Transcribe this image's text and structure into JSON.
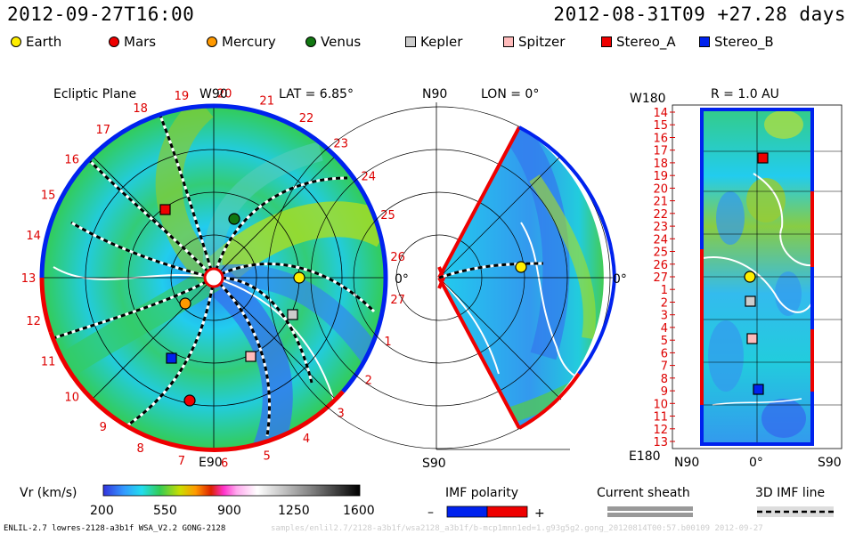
{
  "header": {
    "timestamp_left": "2012-09-27T16:00",
    "timestamp_right": "2012-08-31T09 +27.28 days"
  },
  "legend": [
    {
      "label": "Earth",
      "color": "#ffee00",
      "shape": "circle"
    },
    {
      "label": "Mars",
      "color": "#ee0000",
      "shape": "circle"
    },
    {
      "label": "Mercury",
      "color": "#ff9900",
      "shape": "circle"
    },
    {
      "label": "Venus",
      "color": "#117711",
      "shape": "circle"
    },
    {
      "label": "Kepler",
      "color": "#cccccc",
      "shape": "square"
    },
    {
      "label": "Spitzer",
      "color": "#ffbbbb",
      "shape": "square"
    },
    {
      "label": "Stereo_A",
      "color": "#ee0000",
      "shape": "square"
    },
    {
      "label": "Stereo_B",
      "color": "#0022ee",
      "shape": "square"
    }
  ],
  "ecliptic": {
    "title": "Ecliptic Plane",
    "top_label": "W90",
    "bottom_label": "E90",
    "right_label": "0°",
    "lat_label": "LAT = 6.85°",
    "carrington": [
      "19",
      "20",
      "21",
      "22",
      "23",
      "24",
      "25",
      "26",
      "27",
      "1",
      "2",
      "3",
      "4",
      "5",
      "6",
      "7",
      "8",
      "9",
      "10",
      "11",
      "12",
      "13",
      "14",
      "15",
      "16",
      "17",
      "18"
    ]
  },
  "meridional": {
    "top_label": "N90",
    "bottom_label": "S90",
    "lon_label": "LON = 0°",
    "right_label": "0°"
  },
  "shell": {
    "top_left_label": "W180",
    "bottom_left_label": "E180",
    "r_label": "R = 1.0 AU",
    "bottom_n": "N90",
    "bottom_mid": "0°",
    "bottom_s": "S90",
    "rows": [
      "14",
      "15",
      "16",
      "17",
      "18",
      "19",
      "20",
      "21",
      "22",
      "23",
      "24",
      "25",
      "26",
      "27",
      "1",
      "2",
      "3",
      "4",
      "5",
      "6",
      "7",
      "8",
      "9",
      "10",
      "11",
      "12",
      "13"
    ]
  },
  "colorbar": {
    "label": "Vr (km/s)",
    "ticks": [
      "200",
      "550",
      "900",
      "1250",
      "1600"
    ]
  },
  "imf": {
    "label": "IMF polarity",
    "minus": "–",
    "plus": "+",
    "sheath_label": "Current sheath",
    "line3d_label": "3D IMF line"
  },
  "footer": {
    "model": "ENLIL-2.7 lowres-2128-a3b1f WSA_V2.2 GONG-2128",
    "watermark": "samples/enlil2.7/2128-a3b1f/wsa2128_a3b1f/b-mcp1mnn1ed=1.g93g5g2.gong_20120814T00:57.b00109     2012-09-27"
  },
  "colors": {
    "inner_cyan": "#22ddee",
    "mid_blue": "#3388ee",
    "green": "#33cc55",
    "yellow_green": "#aadd22",
    "positive_polarity": "#ee0000",
    "negative_polarity": "#0022ee"
  }
}
